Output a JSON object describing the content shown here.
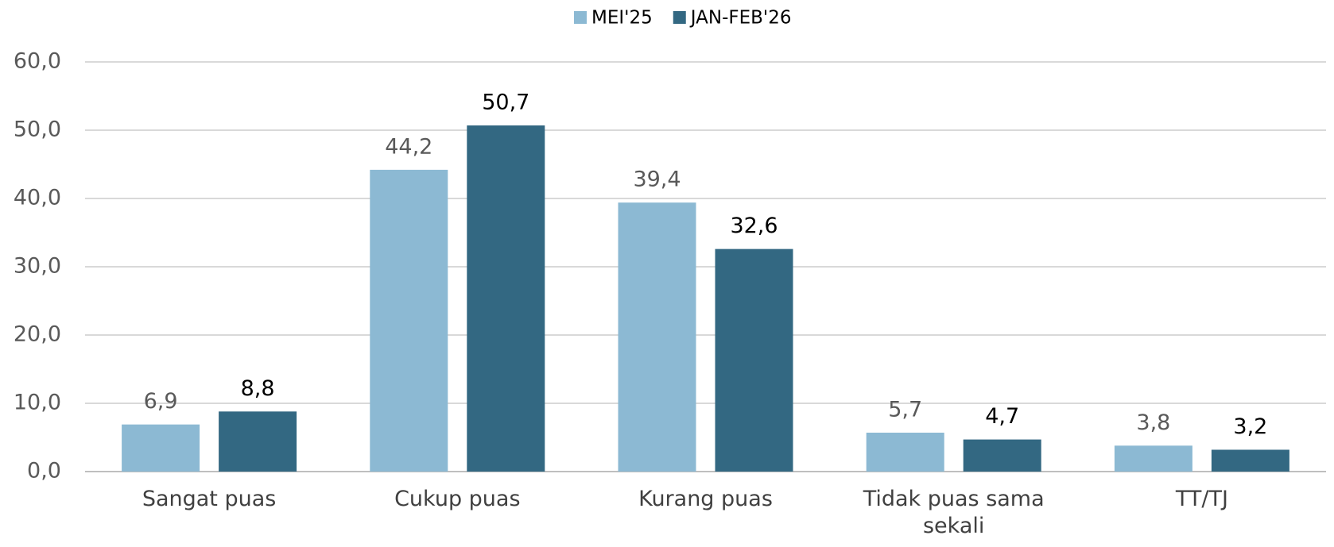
{
  "chart_data": {
    "type": "bar",
    "categories": [
      "Sangat puas",
      "Cukup puas",
      "Kurang puas",
      "Tidak puas sama sekali",
      "TT/TJ"
    ],
    "series": [
      {
        "name": "MEI'25",
        "color": "#8cb9d3",
        "values": [
          6.9,
          44.2,
          39.4,
          5.7,
          3.8
        ],
        "value_labels": [
          "6,9",
          "44,2",
          "39,4",
          "5,7",
          "3,8"
        ]
      },
      {
        "name": "JAN-FEB'26",
        "color": "#336882",
        "values": [
          8.8,
          50.7,
          32.6,
          4.7,
          3.2
        ],
        "value_labels": [
          "8,8",
          "50,7",
          "32,6",
          "4,7",
          "3,2"
        ]
      }
    ],
    "ylim": [
      0,
      60
    ],
    "yticks": [
      {
        "value": 0,
        "label": "0,0"
      },
      {
        "value": 10,
        "label": "10,0"
      },
      {
        "value": 20,
        "label": "20,0"
      },
      {
        "value": 30,
        "label": "30,0"
      },
      {
        "value": 40,
        "label": "40,0"
      },
      {
        "value": 50,
        "label": "50,0"
      },
      {
        "value": 60,
        "label": "60,0"
      }
    ],
    "grid": true,
    "legend": "top"
  }
}
